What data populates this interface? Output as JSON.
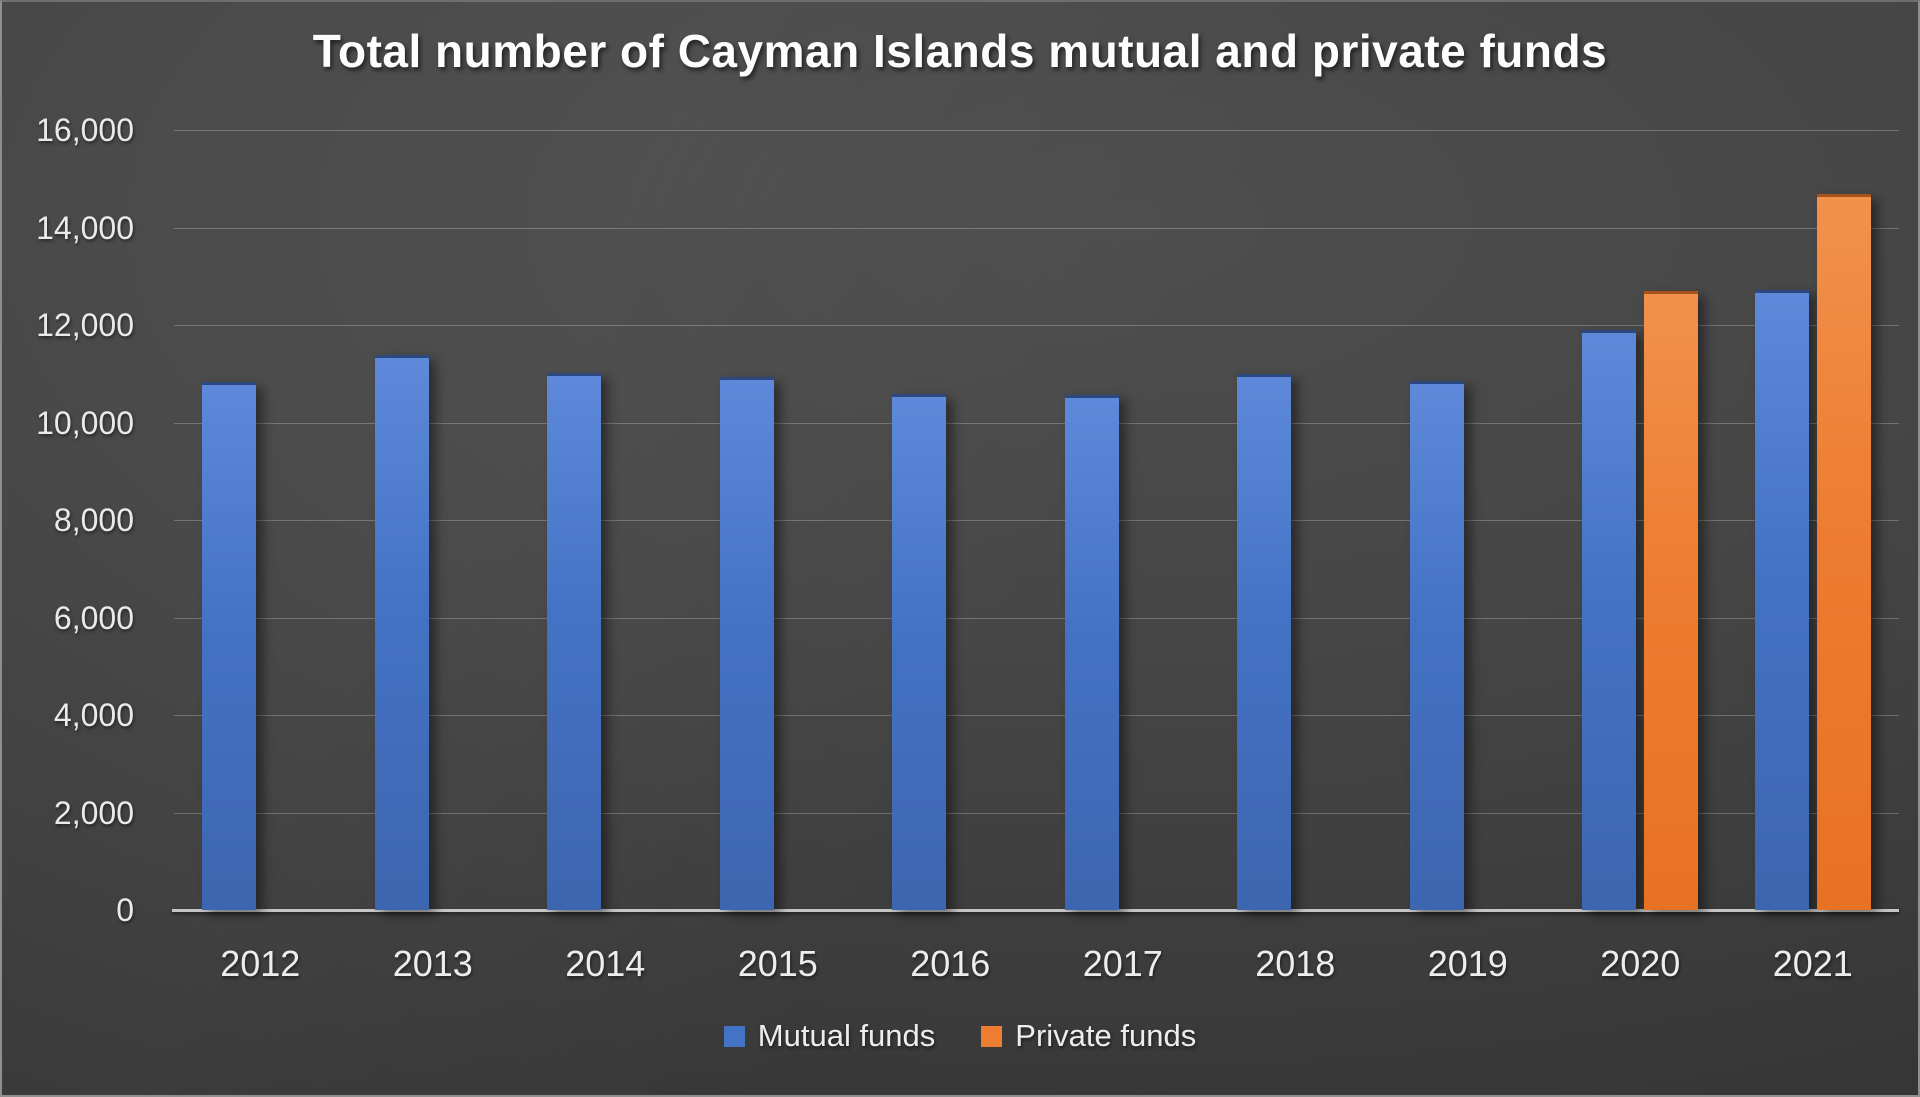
{
  "chart_data": {
    "type": "bar",
    "title": "Total number of Cayman Islands mutual and private funds",
    "categories": [
      "2012",
      "2013",
      "2014",
      "2015",
      "2016",
      "2017",
      "2018",
      "2019",
      "2020",
      "2021"
    ],
    "series": [
      {
        "name": "Mutual funds",
        "color": "#4472C4",
        "fill_top": "#5E89DA",
        "fill_bottom": "#3D66B0",
        "values": [
          10841,
          11379,
          11010,
          10940,
          10586,
          10559,
          10992,
          10857,
          11892,
          12712
        ]
      },
      {
        "name": "Private funds",
        "color": "#ED7D31",
        "fill_top": "#F2914B",
        "fill_bottom": "#E87223",
        "values": [
          null,
          null,
          null,
          null,
          null,
          null,
          null,
          null,
          12695,
          14679
        ]
      }
    ],
    "xlabel": "",
    "ylabel": "",
    "ylim": [
      0,
      16000
    ],
    "ytick_step": 2000,
    "ytick_labels": [
      "0",
      "2,000",
      "4,000",
      "6,000",
      "8,000",
      "10,000",
      "12,000",
      "14,000",
      "16,000"
    ],
    "grid": true,
    "legend_position": "bottom",
    "axis_text_color": "#EDEDED",
    "background_style": "dark radial gradient"
  }
}
